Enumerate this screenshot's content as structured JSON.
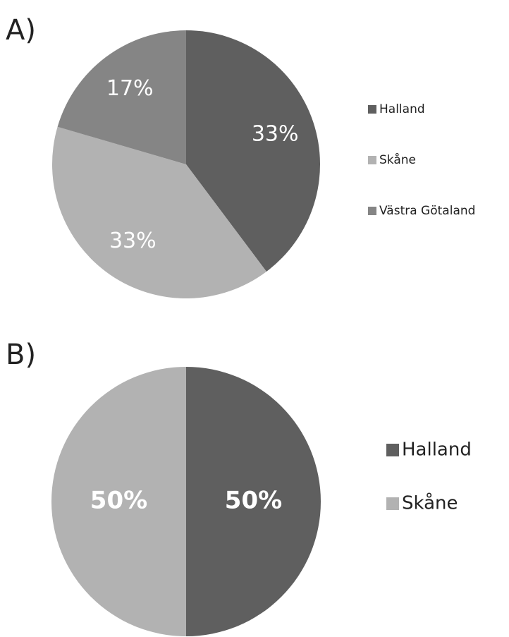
{
  "chart_data": [
    {
      "type": "pie",
      "title": "A)",
      "categories": [
        "Halland",
        "Skåne",
        "Västra Götaland"
      ],
      "values": [
        33,
        33,
        17
      ],
      "value_labels": [
        "33%",
        "33%",
        "17%"
      ],
      "colors": [
        "#5f5f5f",
        "#b2b2b2",
        "#858585"
      ]
    },
    {
      "type": "pie",
      "title": "B)",
      "categories": [
        "Halland",
        "Skåne"
      ],
      "values": [
        50,
        50
      ],
      "value_labels": [
        "50%",
        "50%"
      ],
      "colors": [
        "#5f5f5f",
        "#b2b2b2"
      ]
    }
  ]
}
